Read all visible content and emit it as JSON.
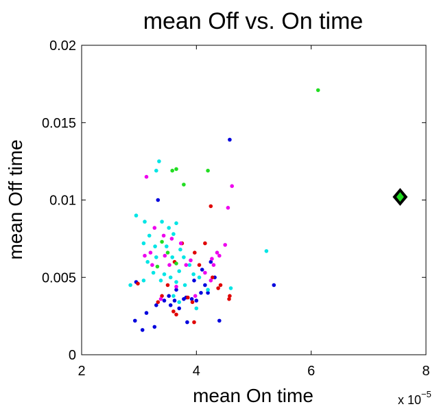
{
  "chart_data": {
    "type": "scatter",
    "title": "mean Off vs. On time",
    "xlabel": "mean On time",
    "ylabel": "mean Off time",
    "x_exponent_label": {
      "base": "x 10",
      "power": "−5"
    },
    "x_scale_factor": 1e-05,
    "xlim": [
      2,
      8
    ],
    "ylim": [
      0,
      0.02
    ],
    "x_ticks": [
      2,
      4,
      6,
      8
    ],
    "x_tick_labels": [
      "2",
      "4",
      "6",
      "8"
    ],
    "y_ticks": [
      0,
      0.005,
      0.01,
      0.015,
      0.02
    ],
    "y_tick_labels": [
      "0",
      "0.005",
      "0.01",
      "0.015",
      "0.02"
    ],
    "grid": false,
    "colors": {
      "blue": "#0000dd",
      "red": "#e00000",
      "cyan": "#00e5e5",
      "magenta": "#ee00ee",
      "green": "#22dd22"
    },
    "series": [
      {
        "color": "blue",
        "points": [
          [
            4.58,
            0.0139
          ],
          [
            3.33,
            0.01
          ],
          [
            5.35,
            0.0045
          ],
          [
            4.4,
            0.0022
          ],
          [
            2.93,
            0.0022
          ],
          [
            3.06,
            0.0016
          ],
          [
            3.27,
            0.0018
          ],
          [
            3.84,
            0.0021
          ],
          [
            3.13,
            0.0027
          ],
          [
            3.3,
            0.0032
          ],
          [
            3.44,
            0.0035
          ],
          [
            3.55,
            0.0032
          ],
          [
            3.62,
            0.0035
          ],
          [
            3.7,
            0.003
          ],
          [
            3.78,
            0.0036
          ],
          [
            3.82,
            0.0037
          ],
          [
            3.92,
            0.0036
          ],
          [
            4.0,
            0.0035
          ],
          [
            4.08,
            0.004
          ],
          [
            4.15,
            0.0045
          ],
          [
            4.2,
            0.004
          ],
          [
            4.32,
            0.005
          ],
          [
            3.96,
            0.0048
          ],
          [
            4.1,
            0.0055
          ],
          [
            4.25,
            0.006
          ],
          [
            3.65,
            0.0042
          ],
          [
            3.52,
            0.0038
          ],
          [
            2.95,
            0.0047
          ]
        ]
      },
      {
        "color": "red",
        "points": [
          [
            4.25,
            0.0096
          ],
          [
            4.15,
            0.0072
          ],
          [
            3.75,
            0.0072
          ],
          [
            3.97,
            0.0066
          ],
          [
            4.05,
            0.0058
          ],
          [
            3.62,
            0.006
          ],
          [
            4.28,
            0.005
          ],
          [
            4.42,
            0.0045
          ],
          [
            4.58,
            0.0038
          ],
          [
            4.57,
            0.0036
          ],
          [
            3.4,
            0.0038
          ],
          [
            3.5,
            0.0045
          ],
          [
            3.33,
            0.0034
          ],
          [
            3.6,
            0.0028
          ],
          [
            3.65,
            0.0026
          ],
          [
            3.96,
            0.0021
          ],
          [
            3.85,
            0.0037
          ],
          [
            3.93,
            0.0034
          ],
          [
            4.38,
            0.0043
          ],
          [
            2.98,
            0.0046
          ]
        ]
      },
      {
        "color": "cyan",
        "points": [
          [
            3.35,
            0.0125
          ],
          [
            3.3,
            0.0119
          ],
          [
            2.95,
            0.009
          ],
          [
            3.1,
            0.0086
          ],
          [
            3.4,
            0.0086
          ],
          [
            3.52,
            0.0082
          ],
          [
            3.6,
            0.0078
          ],
          [
            3.65,
            0.0085
          ],
          [
            3.18,
            0.0077
          ],
          [
            3.08,
            0.0072
          ],
          [
            3.28,
            0.007
          ],
          [
            3.48,
            0.007
          ],
          [
            3.58,
            0.0063
          ],
          [
            3.3,
            0.0063
          ],
          [
            3.15,
            0.006
          ],
          [
            3.72,
            0.0068
          ],
          [
            3.78,
            0.0063
          ],
          [
            3.88,
            0.0058
          ],
          [
            3.95,
            0.0052
          ],
          [
            3.7,
            0.0054
          ],
          [
            3.55,
            0.005
          ],
          [
            3.44,
            0.0052
          ],
          [
            3.38,
            0.0048
          ],
          [
            2.85,
            0.0045
          ],
          [
            3.08,
            0.0048
          ],
          [
            3.65,
            0.0047
          ],
          [
            3.8,
            0.0045
          ],
          [
            4.05,
            0.005
          ],
          [
            4.2,
            0.0042
          ],
          [
            3.6,
            0.0038
          ],
          [
            3.7,
            0.0034
          ],
          [
            4.0,
            0.003
          ],
          [
            5.22,
            0.0067
          ],
          [
            4.6,
            0.0043
          ],
          [
            3.25,
            0.0053
          ]
        ]
      },
      {
        "color": "magenta",
        "points": [
          [
            3.13,
            0.0115
          ],
          [
            4.62,
            0.0109
          ],
          [
            4.55,
            0.0095
          ],
          [
            4.5,
            0.0071
          ],
          [
            4.36,
            0.0066
          ],
          [
            4.27,
            0.0062
          ],
          [
            3.9,
            0.0061
          ],
          [
            3.73,
            0.0072
          ],
          [
            3.57,
            0.0075
          ],
          [
            3.43,
            0.0077
          ],
          [
            3.27,
            0.0082
          ],
          [
            3.2,
            0.0066
          ],
          [
            3.23,
            0.0058
          ],
          [
            3.53,
            0.0058
          ],
          [
            3.45,
            0.0064
          ],
          [
            3.82,
            0.0058
          ],
          [
            4.3,
            0.0058
          ],
          [
            4.15,
            0.0053
          ],
          [
            4.25,
            0.0048
          ],
          [
            3.65,
            0.0044
          ],
          [
            3.98,
            0.0038
          ],
          [
            3.38,
            0.0036
          ],
          [
            3.1,
            0.0064
          ],
          [
            4.4,
            0.0064
          ]
        ]
      },
      {
        "color": "green",
        "points": [
          [
            6.12,
            0.0171
          ],
          [
            4.2,
            0.0119
          ],
          [
            3.58,
            0.0119
          ],
          [
            3.65,
            0.012
          ],
          [
            3.78,
            0.011
          ],
          [
            3.4,
            0.0073
          ],
          [
            3.5,
            0.0066
          ],
          [
            3.32,
            0.0057
          ],
          [
            3.65,
            0.0059
          ]
        ]
      }
    ],
    "marker": {
      "shape": "diamond",
      "x": 7.55,
      "y": 0.0102,
      "fill": "#22dd22",
      "stroke": "#000000"
    }
  }
}
